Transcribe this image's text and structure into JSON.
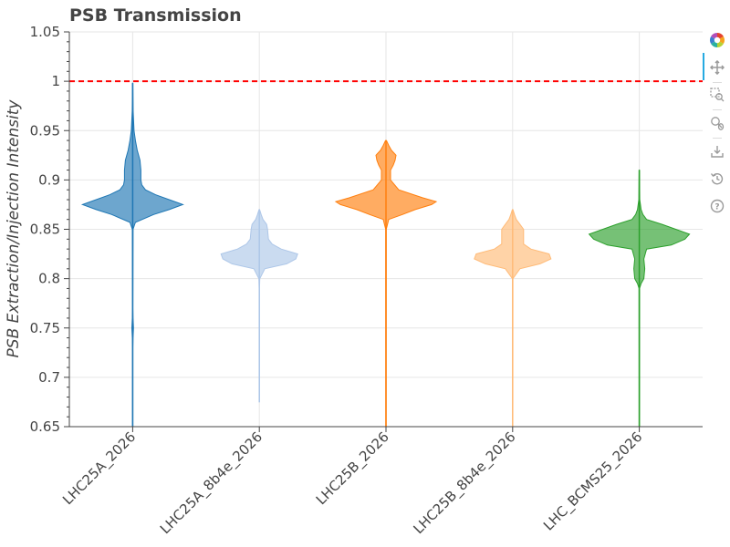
{
  "chart_data": {
    "type": "violin",
    "title": "PSB Transmission",
    "xlabel": "",
    "ylabel": "PSB Extraction/Injection Intensity",
    "ylim": [
      0.65,
      1.05
    ],
    "yticks": [
      0.65,
      0.7,
      0.75,
      0.8,
      0.85,
      0.9,
      0.95,
      1,
      1.05
    ],
    "ytick_labels": [
      "0.65",
      "0.7",
      "0.75",
      "0.8",
      "0.85",
      "0.9",
      "0.95",
      "1",
      "1.05"
    ],
    "grid": true,
    "reference_line": {
      "y": 1.0,
      "color": "#ff0000",
      "style": "dashed"
    },
    "categories": [
      "LHC25A_2026",
      "LHC25A_8b4e_2026",
      "LHC25B_2026",
      "LHC25B_8b4e_2026",
      "LHC_BCMS25_2026"
    ],
    "series": [
      {
        "category": "LHC25A_2026",
        "color": "#1f77b4",
        "min": 0.65,
        "max": 0.998,
        "profile": [
          [
            0.65,
            0.2
          ],
          [
            0.73,
            0.2
          ],
          [
            0.74,
            0.4
          ],
          [
            0.75,
            0.9
          ],
          [
            0.76,
            0.4
          ],
          [
            0.77,
            0.2
          ],
          [
            0.85,
            0.4
          ],
          [
            0.857,
            3
          ],
          [
            0.865,
            23
          ],
          [
            0.87,
            40
          ],
          [
            0.875,
            55
          ],
          [
            0.88,
            40
          ],
          [
            0.885,
            25
          ],
          [
            0.89,
            14
          ],
          [
            0.895,
            10
          ],
          [
            0.9,
            9
          ],
          [
            0.91,
            9
          ],
          [
            0.92,
            8
          ],
          [
            0.93,
            5
          ],
          [
            0.94,
            3
          ],
          [
            0.95,
            1.5
          ],
          [
            0.97,
            0.5
          ],
          [
            0.998,
            0.2
          ]
        ]
      },
      {
        "category": "LHC25A_8b4e_2026",
        "color": "#aec7e8",
        "min": 0.675,
        "max": 0.87,
        "profile": [
          [
            0.675,
            0.2
          ],
          [
            0.79,
            0.2
          ],
          [
            0.8,
            0.5
          ],
          [
            0.81,
            6
          ],
          [
            0.815,
            30
          ],
          [
            0.82,
            40
          ],
          [
            0.825,
            42
          ],
          [
            0.83,
            24
          ],
          [
            0.835,
            14
          ],
          [
            0.84,
            10
          ],
          [
            0.85,
            9
          ],
          [
            0.855,
            8
          ],
          [
            0.86,
            4
          ],
          [
            0.865,
            2
          ],
          [
            0.87,
            0.3
          ]
        ]
      },
      {
        "category": "LHC25B_2026",
        "color": "#ff7f0e",
        "min": 0.65,
        "max": 0.94,
        "profile": [
          [
            0.65,
            0.2
          ],
          [
            0.85,
            0.3
          ],
          [
            0.86,
            3
          ],
          [
            0.865,
            18
          ],
          [
            0.87,
            32
          ],
          [
            0.875,
            50
          ],
          [
            0.878,
            55
          ],
          [
            0.882,
            40
          ],
          [
            0.89,
            14
          ],
          [
            0.9,
            5
          ],
          [
            0.91,
            5
          ],
          [
            0.915,
            8
          ],
          [
            0.92,
            10
          ],
          [
            0.925,
            11
          ],
          [
            0.93,
            6
          ],
          [
            0.935,
            3
          ],
          [
            0.94,
            0.5
          ]
        ]
      },
      {
        "category": "LHC25B_8b4e_2026",
        "color": "#ffbb78",
        "min": 0.65,
        "max": 0.87,
        "profile": [
          [
            0.65,
            0.2
          ],
          [
            0.8,
            0.3
          ],
          [
            0.81,
            8
          ],
          [
            0.815,
            30
          ],
          [
            0.82,
            42
          ],
          [
            0.825,
            40
          ],
          [
            0.83,
            20
          ],
          [
            0.835,
            12
          ],
          [
            0.84,
            12
          ],
          [
            0.85,
            12
          ],
          [
            0.855,
            8
          ],
          [
            0.86,
            4
          ],
          [
            0.865,
            2
          ],
          [
            0.87,
            0.3
          ]
        ]
      },
      {
        "category": "LHC_BCMS25_2026",
        "color": "#2ca02c",
        "min": 0.65,
        "max": 0.91,
        "profile": [
          [
            0.65,
            0.2
          ],
          [
            0.79,
            0.3
          ],
          [
            0.795,
            2
          ],
          [
            0.8,
            5
          ],
          [
            0.81,
            6
          ],
          [
            0.82,
            5
          ],
          [
            0.83,
            8
          ],
          [
            0.834,
            35
          ],
          [
            0.84,
            50
          ],
          [
            0.845,
            55
          ],
          [
            0.85,
            40
          ],
          [
            0.855,
            25
          ],
          [
            0.86,
            8
          ],
          [
            0.865,
            4
          ],
          [
            0.87,
            2
          ],
          [
            0.88,
            0.5
          ],
          [
            0.91,
            0.2
          ]
        ]
      }
    ]
  },
  "toolbar": {
    "tools": [
      "bokeh-logo-icon",
      "pan-icon",
      "box-zoom-icon",
      "wheel-zoom-icon",
      "save-icon",
      "reset-icon",
      "help-icon"
    ]
  }
}
